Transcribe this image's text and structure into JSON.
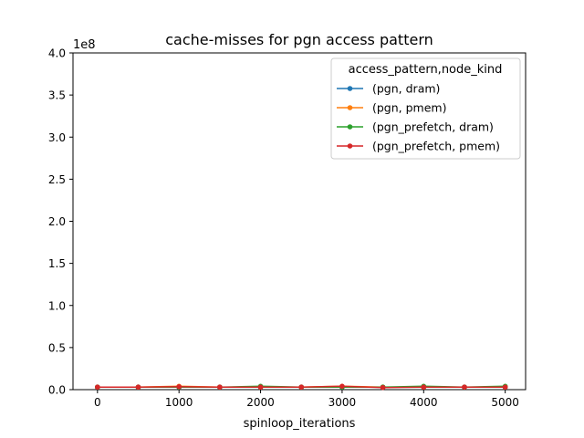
{
  "chart_data": {
    "type": "line",
    "title": "cache-misses for pgn access pattern",
    "xlabel": "spinloop_iterations",
    "ylabel": "",
    "y_offset_label": "1e8",
    "xlim": [
      -300,
      5250
    ],
    "ylim": [
      0,
      4.0
    ],
    "x_ticks": [
      0,
      1000,
      2000,
      3000,
      4000,
      5000
    ],
    "y_ticks": [
      0.0,
      0.5,
      1.0,
      1.5,
      2.0,
      2.5,
      3.0,
      3.5,
      4.0
    ],
    "x_tick_labels": [
      "0",
      "1000",
      "2000",
      "3000",
      "4000",
      "5000"
    ],
    "y_tick_labels": [
      "0.0",
      "0.5",
      "1.0",
      "1.5",
      "2.0",
      "2.5",
      "3.0",
      "3.5",
      "4.0"
    ],
    "grid": false,
    "legend": {
      "title": "access_pattern,node_kind",
      "placement": "top-right"
    },
    "x": [
      0,
      500,
      1000,
      1500,
      2000,
      2500,
      3000,
      3500,
      4000,
      4500,
      5000
    ],
    "series": [
      {
        "name": "(pgn, dram)",
        "color": "#1f77b4",
        "values": [
          0.03,
          0.03,
          0.03,
          0.03,
          0.03,
          0.03,
          0.03,
          0.03,
          0.03,
          0.03,
          0.03
        ]
      },
      {
        "name": "(pgn, pmem)",
        "color": "#ff7f0e",
        "values": [
          0.03,
          0.03,
          0.04,
          0.03,
          0.03,
          0.03,
          0.04,
          0.03,
          0.03,
          0.03,
          0.03
        ]
      },
      {
        "name": "(pgn_prefetch, dram)",
        "color": "#2ca02c",
        "values": [
          0.03,
          0.03,
          0.03,
          0.03,
          0.04,
          0.03,
          0.03,
          0.03,
          0.04,
          0.03,
          0.04
        ]
      },
      {
        "name": "(pgn_prefetch, pmem)",
        "color": "#d62728",
        "values": [
          0.03,
          0.03,
          0.035,
          0.03,
          0.03,
          0.03,
          0.04,
          0.025,
          0.03,
          0.03,
          0.03
        ]
      }
    ]
  }
}
